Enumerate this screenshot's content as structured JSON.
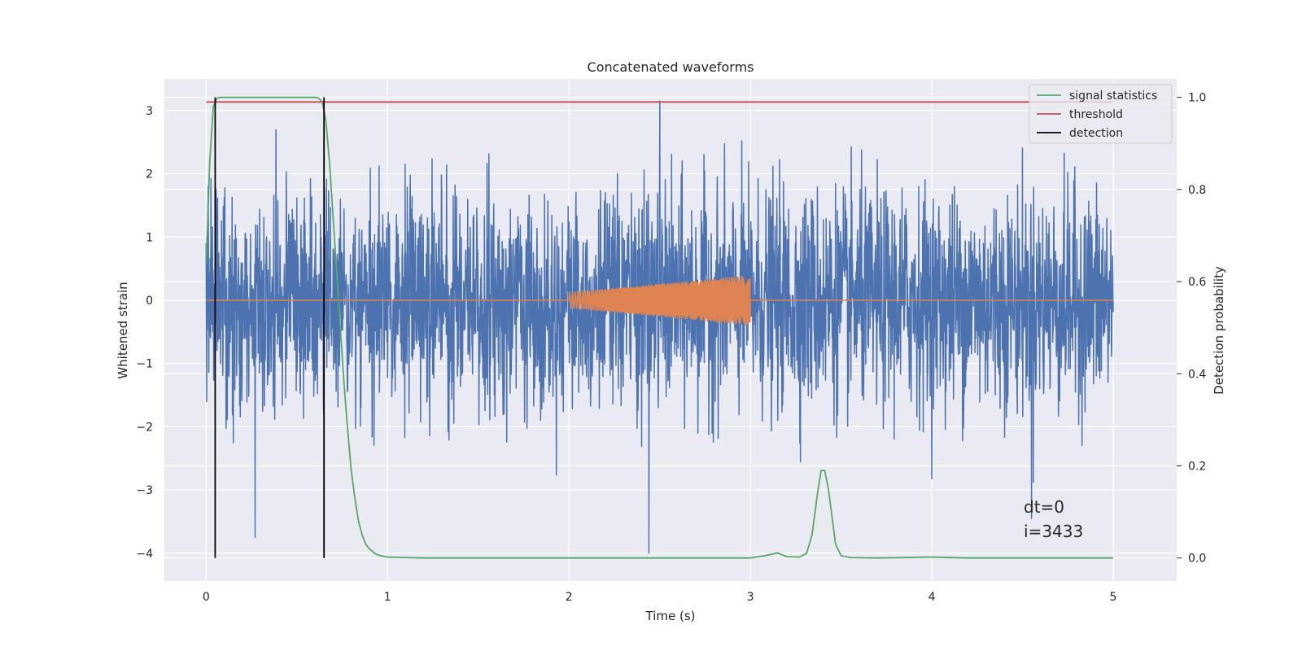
{
  "chart_data": {
    "type": "line",
    "title": "Concatenated waveforms",
    "xlabel": "Time (s)",
    "ylabel": "Whitened strain",
    "ylabel_right": "Detection probability",
    "xlim": [
      -0.23,
      5.35
    ],
    "ylim": [
      -4.44,
      3.5
    ],
    "ylim_right": [
      -0.05,
      1.04
    ],
    "x_ticks": [
      0,
      1,
      2,
      3,
      4,
      5
    ],
    "x_tick_labels": [
      "0",
      "1",
      "2",
      "3",
      "4",
      "5"
    ],
    "y_ticks": [
      -4,
      -3,
      -2,
      -1,
      0,
      1,
      2,
      3
    ],
    "y_tick_labels": [
      "−4",
      "−3",
      "−2",
      "−1",
      "0",
      "1",
      "2",
      "3"
    ],
    "y_right_ticks": [
      0.0,
      0.2,
      0.4,
      0.6,
      0.8,
      1.0
    ],
    "y_right_tick_labels": [
      "0.0",
      "0.2",
      "0.4",
      "0.6",
      "0.8",
      "1.0"
    ],
    "grid": true,
    "legend_position": "top-right",
    "colors": {
      "background": "#eaeaf2",
      "noise": "#4c72b0",
      "injection": "#dd8452",
      "signal_statistics": "#55a868",
      "threshold": "#c44e52",
      "detection": "#000000"
    },
    "series": [
      {
        "name": "",
        "axis": "left",
        "style": "noise",
        "x_range": [
          0,
          5
        ],
        "envelope": {
          "typical_max": 2.3,
          "typical_min": -1.9
        },
        "notable_peaks": [
          [
            2.5,
            3.15
          ],
          [
            2.44,
            -4.0
          ],
          [
            0.27,
            -3.75
          ],
          [
            4.55,
            -3.45
          ]
        ]
      },
      {
        "name": "",
        "axis": "left",
        "style": "injection",
        "x": [
          0,
          2,
          3,
          5
        ],
        "amplitude_start": 0.12,
        "amplitude_end": 0.4,
        "chirp_x_range": [
          2,
          3
        ]
      },
      {
        "name": "signal statistics",
        "axis": "right",
        "x": [
          0,
          0.02,
          0.04,
          0.06,
          0.08,
          0.1,
          0.2,
          0.4,
          0.6,
          0.62,
          0.64,
          0.66,
          0.68,
          0.7,
          0.72,
          0.74,
          0.76,
          0.78,
          0.8,
          0.82,
          0.84,
          0.86,
          0.88,
          0.9,
          0.93,
          0.96,
          1.0,
          1.1,
          1.2,
          1.5,
          2.0,
          2.5,
          3.0,
          3.08,
          3.15,
          3.2,
          3.27,
          3.31,
          3.34,
          3.37,
          3.39,
          3.41,
          3.43,
          3.45,
          3.47,
          3.5,
          3.55,
          3.7,
          4.0,
          4.2,
          5.0
        ],
        "y": [
          0.64,
          0.86,
          0.98,
          0.998,
          1.0,
          1.0,
          1.0,
          1.0,
          1.0,
          0.998,
          0.99,
          0.95,
          0.86,
          0.74,
          0.62,
          0.5,
          0.38,
          0.28,
          0.19,
          0.13,
          0.08,
          0.05,
          0.03,
          0.02,
          0.01,
          0.005,
          0.002,
          0.001,
          0.0,
          0.0,
          0.0,
          0.0,
          0.0,
          0.005,
          0.011,
          0.003,
          0.002,
          0.01,
          0.05,
          0.14,
          0.19,
          0.19,
          0.15,
          0.09,
          0.03,
          0.005,
          0.001,
          0.0,
          0.002,
          0.0,
          0.0
        ]
      },
      {
        "name": "threshold",
        "axis": "right",
        "x": [
          0,
          5
        ],
        "y": [
          0.99,
          0.99
        ]
      },
      {
        "name": "detection",
        "axis": "right",
        "type": "vlines",
        "x": [
          0.05,
          0.65
        ],
        "y": [
          0.0,
          1.0
        ]
      }
    ],
    "annotations": [
      "dt=0",
      "i=3433"
    ]
  }
}
